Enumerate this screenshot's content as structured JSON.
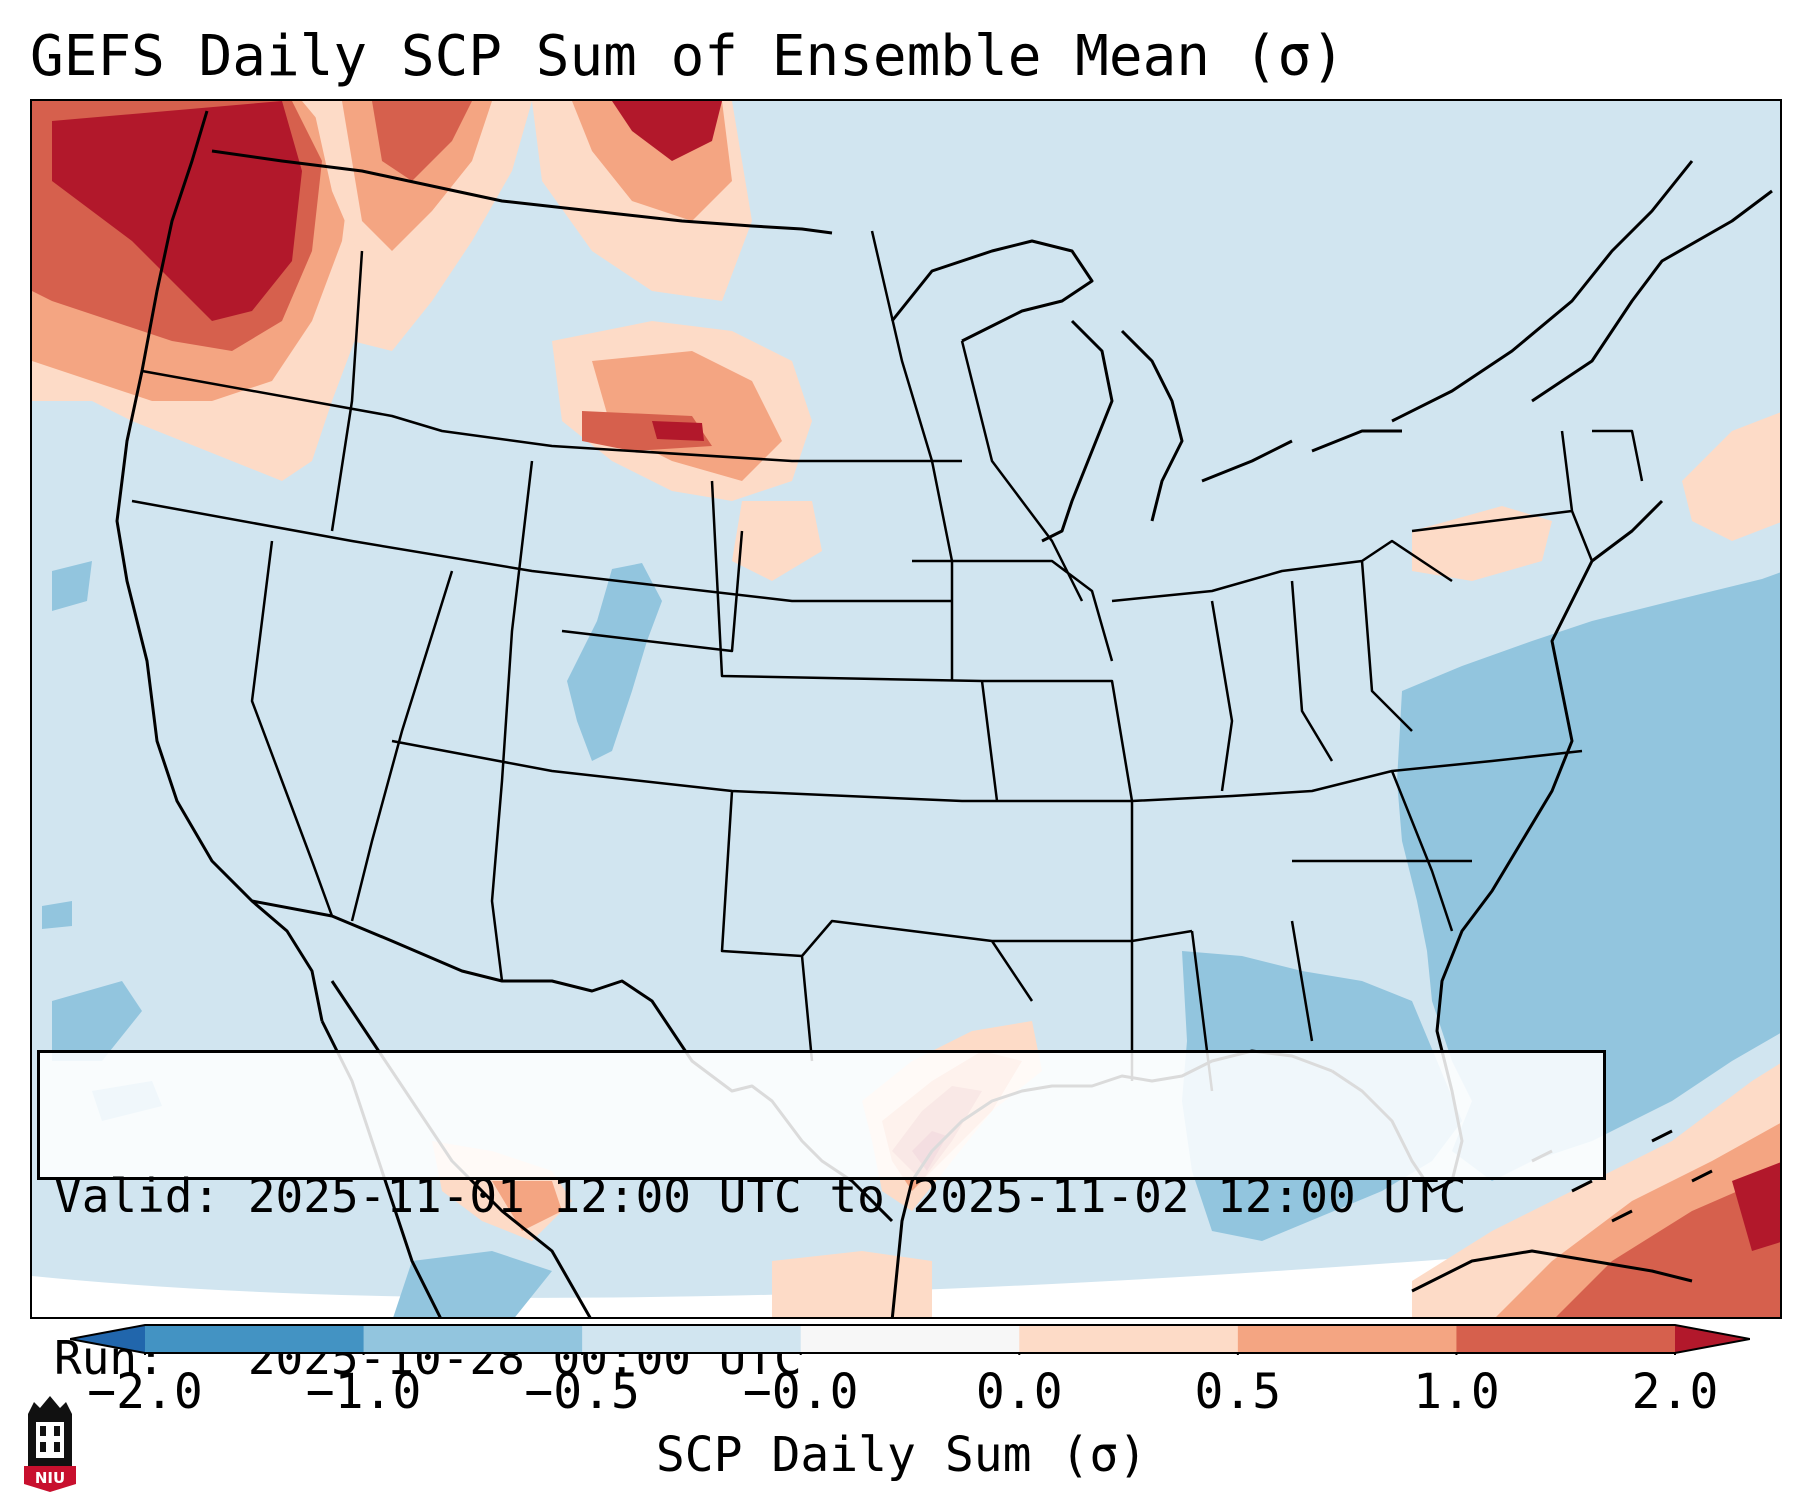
{
  "title": "GEFS Daily SCP Sum of Ensemble Mean (σ)",
  "info": {
    "valid_line": "Valid: 2025-11-01 12:00 UTC to 2025-11-02 12:00 UTC",
    "run_line": "Run:   2025-10-28 00:00 UTC"
  },
  "colorbar": {
    "label": "SCP Daily Sum (σ)",
    "tick_labels": [
      "−2.0",
      "−1.0",
      "−0.5",
      "−0.0",
      "0.0",
      "0.5",
      "1.0",
      "2.0"
    ],
    "bins": [
      {
        "name": "below -2.0 (extend)",
        "color": "#2166ac"
      },
      {
        "name": "-2.0 to -1.0",
        "color": "#4393c3"
      },
      {
        "name": "-1.0 to -0.5",
        "color": "#92c5de"
      },
      {
        "name": "-0.5 to -0.0",
        "color": "#d1e5f0"
      },
      {
        "name": "-0.0 to 0.0",
        "color": "#f7f7f7"
      },
      {
        "name": "0.0 to 0.5",
        "color": "#fddbc7"
      },
      {
        "name": "0.5 to 1.0",
        "color": "#f4a582"
      },
      {
        "name": "1.0 to 2.0",
        "color": "#d6604d"
      },
      {
        "name": "above 2.0 (extend)",
        "color": "#b2182b"
      }
    ]
  },
  "map": {
    "projection": "Lambert conformal, CONUS",
    "background_color": "#d1e5f0",
    "regions": [
      {
        "name": "pacific-northwest",
        "level": "2.0+"
      },
      {
        "name": "northern-rockies",
        "level": "0.5-1.0"
      },
      {
        "name": "montana-dakotas",
        "level": "1.0-2.0"
      },
      {
        "name": "texas-gulf-coast",
        "level": "1.0-2.0"
      },
      {
        "name": "caribbean-bahamas",
        "level": "1.0-2.0"
      },
      {
        "name": "western-atlantic",
        "level": "-1.0 to -0.5"
      },
      {
        "name": "gulf-of-mexico",
        "level": "-1.0 to -0.5"
      },
      {
        "name": "colorado",
        "level": "-1.0 to -0.5"
      }
    ]
  },
  "logo": {
    "text": "NIU",
    "colors": {
      "red": "#c8102e",
      "black": "#111111"
    }
  }
}
